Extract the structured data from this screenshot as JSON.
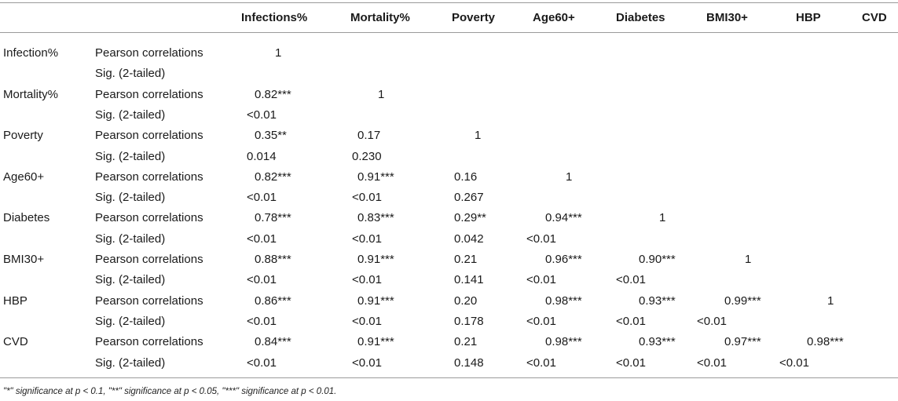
{
  "table": {
    "headers": [
      "Infections%",
      "Mortality%",
      "Poverty",
      "Age60+",
      "Diabetes",
      "BMI30+",
      "HBP",
      "CVD"
    ],
    "rows": [
      {
        "variable": "Infection%",
        "stat": "Pearson correlations",
        "cells": [
          "1",
          "",
          "",
          "",
          "",
          "",
          "",
          ""
        ]
      },
      {
        "variable": "",
        "stat": "Sig. (2-tailed)",
        "cells": [
          "",
          "",
          "",
          "",
          "",
          "",
          "",
          ""
        ]
      },
      {
        "variable": "Mortality%",
        "stat": "Pearson correlations",
        "cells": [
          "0.82***",
          "1",
          "",
          "",
          "",
          "",
          "",
          ""
        ]
      },
      {
        "variable": "",
        "stat": "Sig. (2-tailed)",
        "cells": [
          "<0.01",
          "",
          "",
          "",
          "",
          "",
          "",
          ""
        ]
      },
      {
        "variable": "Poverty",
        "stat": "Pearson correlations",
        "cells": [
          "0.35**",
          "0.17",
          "1",
          "",
          "",
          "",
          "",
          ""
        ]
      },
      {
        "variable": "",
        "stat": "Sig. (2-tailed)",
        "cells": [
          "0.014",
          "0.230",
          "",
          "",
          "",
          "",
          "",
          ""
        ]
      },
      {
        "variable": "Age60+",
        "stat": "Pearson correlations",
        "cells": [
          "0.82***",
          "0.91***",
          "0.16",
          "1",
          "",
          "",
          "",
          ""
        ]
      },
      {
        "variable": "",
        "stat": "Sig. (2-tailed)",
        "cells": [
          "<0.01",
          "<0.01",
          "0.267",
          "",
          "",
          "",
          "",
          ""
        ]
      },
      {
        "variable": "Diabetes",
        "stat": "Pearson correlations",
        "cells": [
          "0.78***",
          "0.83***",
          "0.29**",
          "0.94***",
          "1",
          "",
          "",
          ""
        ]
      },
      {
        "variable": "",
        "stat": "Sig. (2-tailed)",
        "cells": [
          "<0.01",
          "<0.01",
          "0.042",
          "<0.01",
          "",
          "",
          "",
          ""
        ]
      },
      {
        "variable": "BMI30+",
        "stat": "Pearson correlations",
        "cells": [
          "0.88***",
          "0.91***",
          "0.21",
          "0.96***",
          "0.90***",
          "1",
          "",
          ""
        ]
      },
      {
        "variable": "",
        "stat": "Sig. (2-tailed)",
        "cells": [
          "<0.01",
          "<0.01",
          "0.141",
          "<0.01",
          "<0.01",
          "",
          "",
          ""
        ]
      },
      {
        "variable": "HBP",
        "stat": "Pearson correlations",
        "cells": [
          "0.86***",
          "0.91***",
          "0.20",
          "0.98***",
          "0.93***",
          "0.99***",
          "1",
          ""
        ]
      },
      {
        "variable": "",
        "stat": "Sig. (2-tailed)",
        "cells": [
          "<0.01",
          "<0.01",
          "0.178",
          "<0.01",
          "<0.01",
          "<0.01",
          "",
          ""
        ]
      },
      {
        "variable": "CVD",
        "stat": "Pearson correlations",
        "cells": [
          "0.84***",
          "0.91***",
          "0.21",
          "0.98***",
          "0.93***",
          "0.97***",
          "0.98***",
          "1"
        ]
      },
      {
        "variable": "",
        "stat": "Sig. (2-tailed)",
        "cells": [
          "<0.01",
          "<0.01",
          "0.148",
          "<0.01",
          "<0.01",
          "<0.01",
          "<0.01",
          ""
        ]
      }
    ]
  },
  "footnote": "\"*\" significance at p < 0.1, \"**\" significance at p < 0.05, \"***\" significance at p < 0.01."
}
